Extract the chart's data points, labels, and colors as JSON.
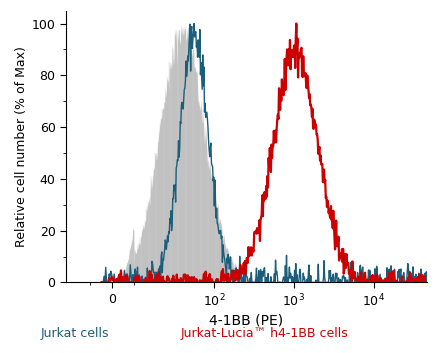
{
  "title": "",
  "xlabel": "4-1BB (PE)",
  "ylabel": "Relative cell number (% of Max)",
  "ylim": [
    0,
    105
  ],
  "yticks": [
    0,
    20,
    40,
    60,
    80,
    100
  ],
  "jurkat_color": "#1b5e7b",
  "jurkat_fill_color": "#c8c8c8",
  "h4bb_color": "#cc0000",
  "legend_jurkat": "Jurkat cells",
  "legend_h4bb": "Jurkat-Lucia™ h4-1BB cells",
  "legend_jurkat_color": "#1b5e7b",
  "legend_h4bb_color": "#cc0000",
  "jurkat_log_mean": 1.75,
  "jurkat_log_std": 0.18,
  "jurkat_noise_std": 0.1,
  "gray_log_mean": 1.6,
  "gray_log_std": 0.28,
  "h4bb_log_mean": 3.02,
  "h4bb_log_std": 0.28,
  "h4bb_noise_std": 0.04,
  "background_color": "#ffffff",
  "linthresh": 10,
  "linscale": 0.25,
  "xlim_left": -20,
  "xlim_right": 46415
}
